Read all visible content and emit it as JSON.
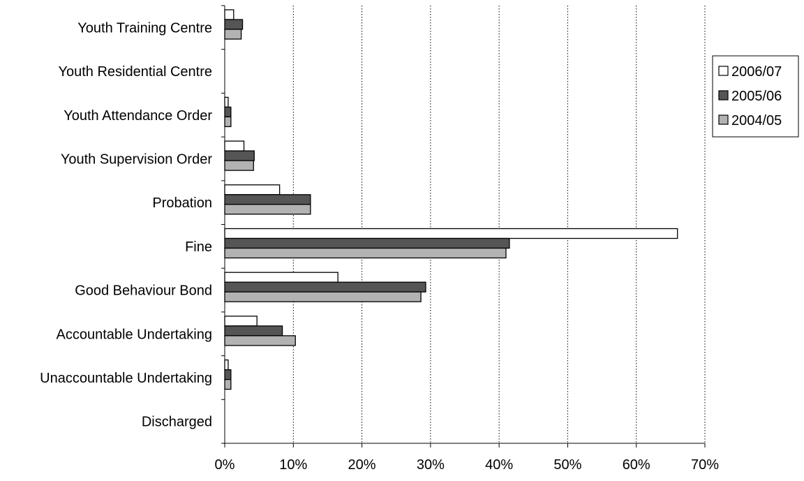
{
  "chart_data": {
    "type": "bar",
    "orientation": "horizontal",
    "title": "",
    "xlabel": "",
    "ylabel": "",
    "categories": [
      "Youth Training Centre",
      "Youth Residential Centre",
      "Youth Attendance Order",
      "Youth Supervision Order",
      "Probation",
      "Fine",
      "Good Behaviour Bond",
      "Accountable Undertaking",
      "Unaccountable Undertaking",
      "Discharged"
    ],
    "series": [
      {
        "name": "2006/07",
        "color": "#ffffff",
        "values": [
          1.3,
          0,
          0.5,
          2.8,
          8.0,
          66.0,
          16.5,
          4.7,
          0.5,
          0
        ]
      },
      {
        "name": "2005/06",
        "color": "#555555",
        "values": [
          2.6,
          0,
          0.9,
          4.3,
          12.5,
          41.5,
          29.3,
          8.4,
          0.9,
          0
        ]
      },
      {
        "name": "2004/05",
        "color": "#b2b2b2",
        "values": [
          2.4,
          0,
          0.9,
          4.2,
          12.5,
          41.0,
          28.6,
          10.3,
          0.9,
          0
        ]
      }
    ],
    "xlim": [
      0,
      70
    ],
    "xticks": [
      "0%",
      "10%",
      "20%",
      "30%",
      "40%",
      "50%",
      "60%",
      "70%"
    ],
    "grid": "vertical dotted",
    "legend_position": "right"
  }
}
